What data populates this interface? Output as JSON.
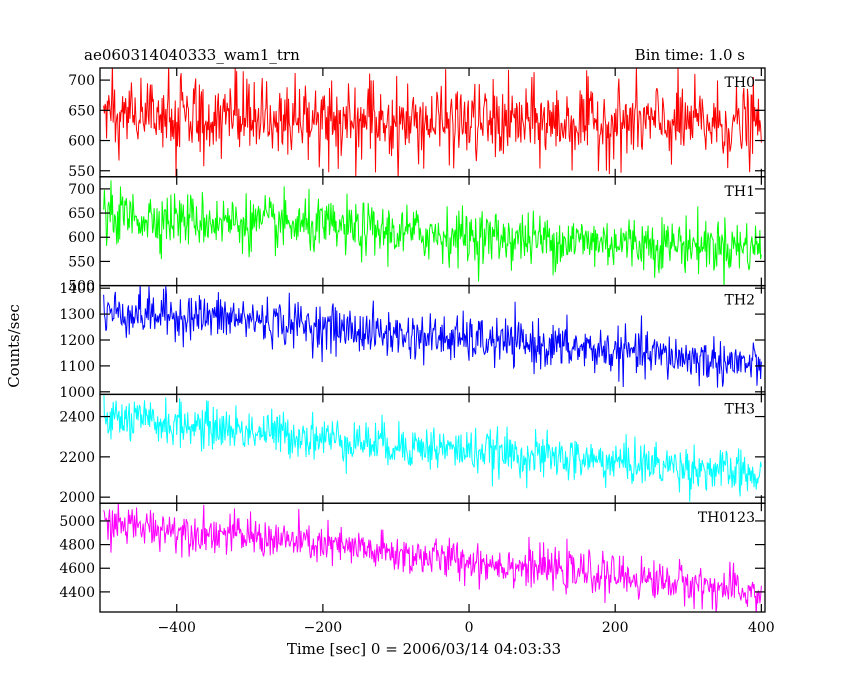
{
  "chart_data": {
    "type": "line",
    "title": "ae060314040333_wam1_trn",
    "subtitle": "Bin time: 1.0 s",
    "xlabel": "Time [sec] 0 = 2006/03/14 04:03:33",
    "ylabel": "Counts/sec",
    "xlim": [
      -505,
      405
    ],
    "xticks": [
      -400,
      -200,
      0,
      200,
      400
    ],
    "grid": false,
    "panels": [
      {
        "name": "TH0",
        "color": "#ff0000",
        "ylim": [
          540,
          720
        ],
        "yticks": [
          550,
          600,
          650,
          700
        ],
        "trend": [
          [
            -500,
            640
          ],
          [
            -300,
            640
          ],
          [
            -100,
            630
          ],
          [
            100,
            630
          ],
          [
            300,
            628
          ],
          [
            400,
            625
          ]
        ],
        "noise": 32
      },
      {
        "name": "TH1",
        "color": "#00ff00",
        "ylim": [
          500,
          725
        ],
        "yticks": [
          500,
          550,
          600,
          650,
          700
        ],
        "trend": [
          [
            -500,
            645
          ],
          [
            -300,
            630
          ],
          [
            -100,
            610
          ],
          [
            100,
            595
          ],
          [
            300,
            585
          ],
          [
            400,
            580
          ]
        ],
        "noise": 28
      },
      {
        "name": "TH2",
        "color": "#0000ff",
        "ylim": [
          990,
          1410
        ],
        "yticks": [
          1000,
          1100,
          1200,
          1300,
          1400
        ],
        "trend": [
          [
            -500,
            1310
          ],
          [
            -300,
            1280
          ],
          [
            -100,
            1220
          ],
          [
            100,
            1180
          ],
          [
            300,
            1130
          ],
          [
            400,
            1100
          ]
        ],
        "noise": 45
      },
      {
        "name": "TH3",
        "color": "#00ffff",
        "ylim": [
          1970,
          2510
        ],
        "yticks": [
          2000,
          2200,
          2400
        ],
        "trend": [
          [
            -500,
            2390
          ],
          [
            -300,
            2330
          ],
          [
            -100,
            2260
          ],
          [
            100,
            2200
          ],
          [
            300,
            2150
          ],
          [
            400,
            2100
          ]
        ],
        "noise": 55
      },
      {
        "name": "TH0123",
        "color": "#ff00ff",
        "ylim": [
          4230,
          5150
        ],
        "yticks": [
          4400,
          4600,
          4800,
          5000
        ],
        "trend": [
          [
            -500,
            4980
          ],
          [
            -300,
            4870
          ],
          [
            -100,
            4720
          ],
          [
            100,
            4600
          ],
          [
            300,
            4470
          ],
          [
            400,
            4380
          ]
        ],
        "noise": 85
      }
    ]
  }
}
